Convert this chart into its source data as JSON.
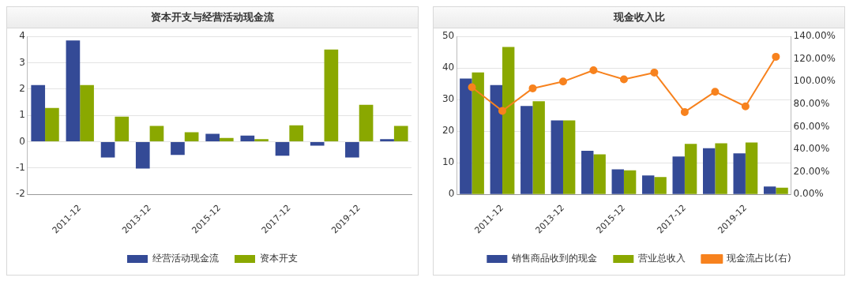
{
  "chart_data": [
    {
      "type": "bar",
      "title": "资本开支与经营活动现金流",
      "categories": [
        null,
        "2011-12",
        null,
        "2013-12",
        null,
        "2015-12",
        null,
        "2017-12",
        null,
        "2019-12",
        null
      ],
      "series": [
        {
          "name": "经营活动现金流",
          "color": "#344a96",
          "values": [
            2.15,
            3.85,
            -0.6,
            -1.02,
            -0.5,
            0.3,
            0.23,
            -0.53,
            -0.15,
            -0.6,
            0.1
          ]
        },
        {
          "name": "资本开支",
          "color": "#8aa800",
          "values": [
            1.28,
            2.15,
            0.95,
            0.6,
            0.36,
            0.14,
            0.1,
            0.62,
            3.5,
            1.4,
            0.6
          ]
        }
      ],
      "ylim": [
        -2,
        4
      ],
      "yticks": [
        -2,
        -1,
        0,
        1,
        2,
        3,
        4
      ],
      "grid": "y",
      "legend": "bottom"
    },
    {
      "type": "bar",
      "title": "现金收入比",
      "categories": [
        null,
        "2011-12",
        null,
        "2013-12",
        null,
        "2015-12",
        null,
        "2017-12",
        null,
        "2019-12",
        null
      ],
      "series": [
        {
          "name": "销售商品收到的现金",
          "color": "#344a96",
          "values": [
            36.7,
            34.6,
            28,
            23.4,
            13.8,
            7.9,
            6,
            12,
            14.6,
            13,
            2.5
          ]
        },
        {
          "name": "营业总收入",
          "color": "#8aa800",
          "values": [
            38.6,
            46.7,
            29.5,
            23.4,
            12.7,
            7.6,
            5.5,
            16,
            16.2,
            16.4,
            2.1
          ]
        },
        {
          "name": "现金流占比(右)",
          "type": "line",
          "axis": "y2",
          "color": "#f7821e",
          "marker": "circle",
          "values": [
            95,
            74,
            94,
            100,
            110,
            102,
            108,
            73,
            91,
            78,
            122
          ]
        }
      ],
      "ylim": [
        0,
        50
      ],
      "yticks": [
        0,
        10,
        20,
        30,
        40,
        50
      ],
      "y2lim": [
        0,
        140
      ],
      "y2ticks": [
        {
          "value": 0,
          "label": "0.00%"
        },
        {
          "value": 20,
          "label": "20.00%"
        },
        {
          "value": 40,
          "label": "40.00%"
        },
        {
          "value": 60,
          "label": "60.00%"
        },
        {
          "value": 80,
          "label": "80.00%"
        },
        {
          "value": 100,
          "label": "100.00%"
        },
        {
          "value": 120,
          "label": "120.00%"
        },
        {
          "value": 140,
          "label": "140.00%"
        }
      ],
      "grid": "y",
      "legend": "bottom"
    }
  ]
}
